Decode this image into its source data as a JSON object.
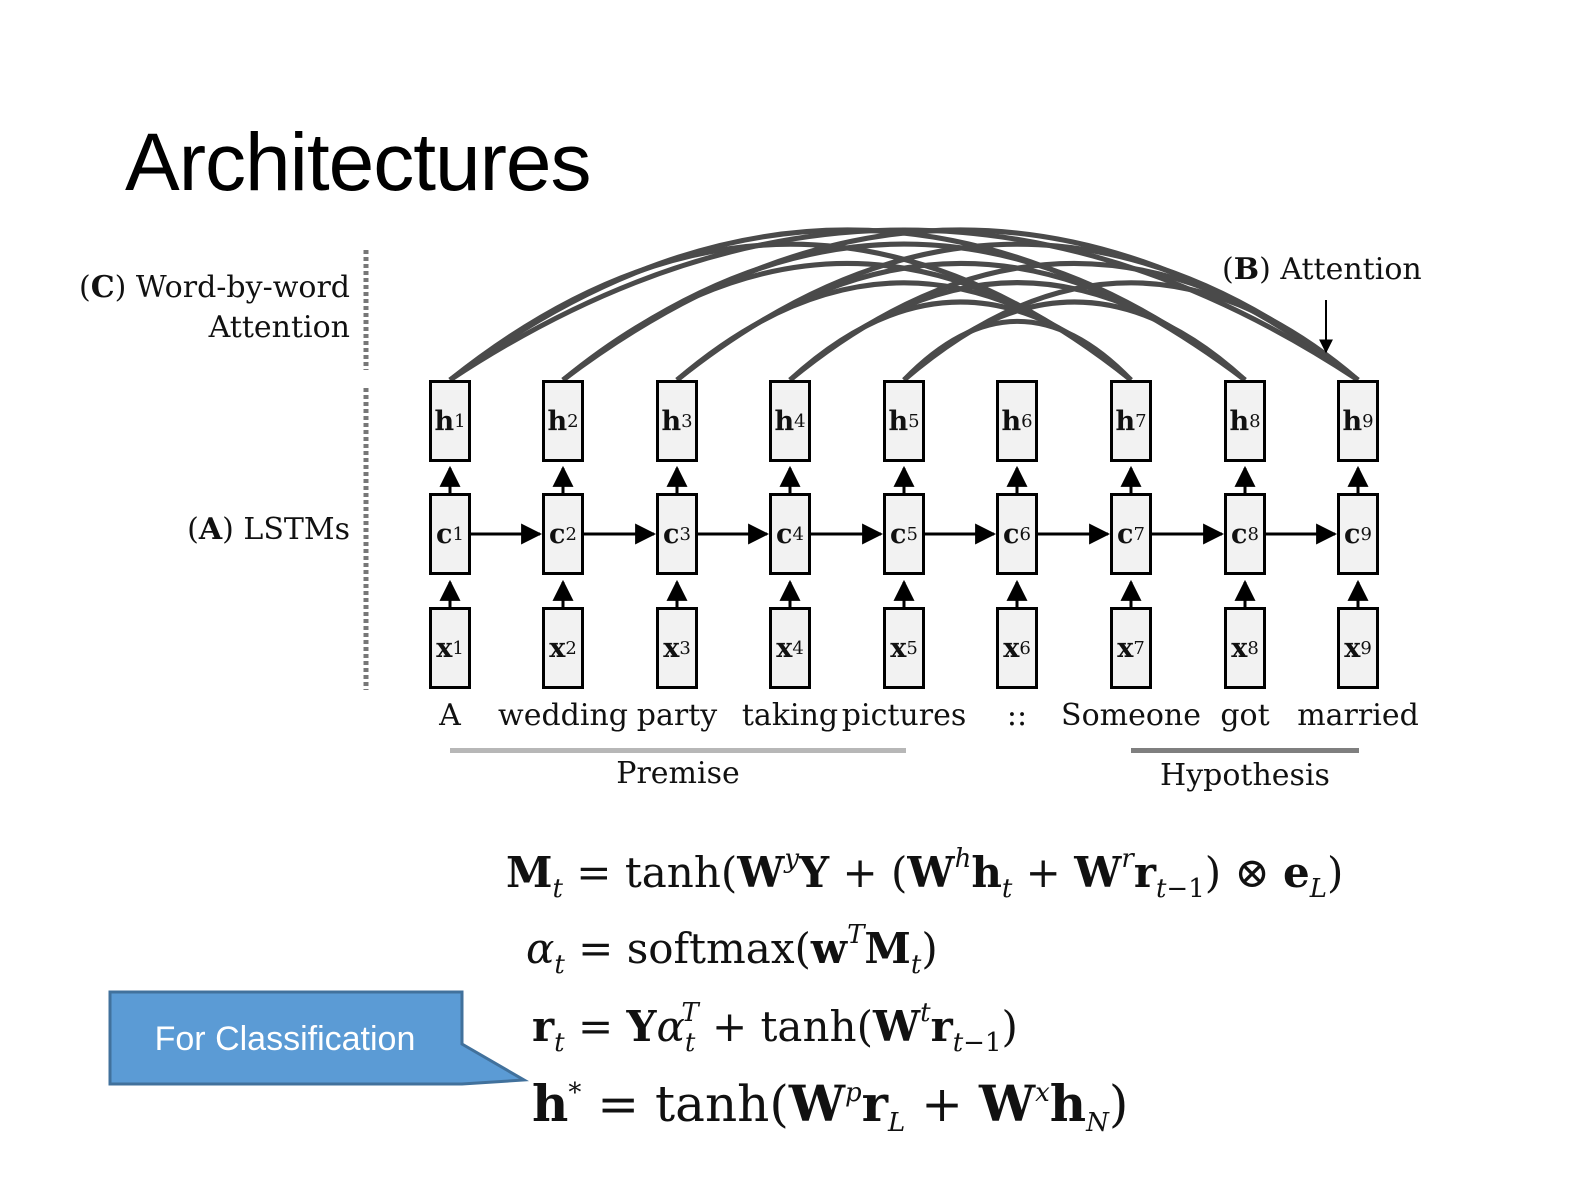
{
  "slide": {
    "title": "Architectures"
  },
  "labels": {
    "c_letter": "C",
    "c_text_1": "Word-by-word",
    "c_text_2": "Attention",
    "a_letter": "A",
    "a_text": "LSTMs",
    "b_letter": "B",
    "b_text": "Attention"
  },
  "rows": {
    "h": "h",
    "c": "c",
    "x": "x"
  },
  "indices": [
    "1",
    "2",
    "3",
    "4",
    "5",
    "6",
    "7",
    "8",
    "9"
  ],
  "words": [
    "A",
    "wedding",
    "party",
    "taking",
    "pictures",
    "::",
    "Someone",
    "got",
    "married"
  ],
  "groups": {
    "premise": "Premise",
    "hypothesis": "Hypothesis"
  },
  "equations": {
    "eq1": "M_t = tanh(W^y Y + (W^h h_t + W^r r_{t−1}) ⊗ e_L)",
    "eq2": "α_t = softmax(w^T M_t)",
    "eq3": "r_t = Y α_t^T + tanh(W^t r_{t−1})",
    "eq4": "h* = tanh(W^p r_L + W^x h_N)"
  },
  "callout": {
    "text": "For Classification"
  },
  "colors": {
    "callout_fill": "#5b9bd5",
    "callout_border": "#41719c",
    "attention_arc": "#4a4a4a",
    "premise_bar": "#b7b7b7",
    "hypothesis_bar": "#7f7f7f"
  }
}
